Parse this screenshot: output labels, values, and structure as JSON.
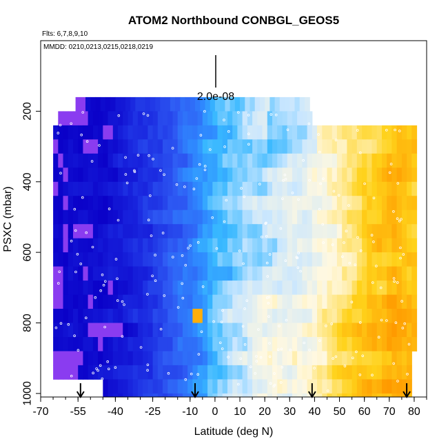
{
  "chart_data": {
    "type": "heatmap",
    "title": "ATOM2 Northbound CONBGL_GEOS5",
    "flights_note": "Flts: 6,7,8,9,10",
    "dates_note": "MMDD: 0210,0213,0215,0218,0219",
    "xlabel": "Latitude (deg N)",
    "ylabel": "PSXC (mbar)",
    "xlim": [
      -70,
      85
    ],
    "ylim": [
      1010,
      0
    ],
    "x_ticks": [
      -70,
      -55,
      -40,
      -25,
      -10,
      0,
      10,
      20,
      30,
      40,
      50,
      60,
      70,
      80
    ],
    "y_ticks": [
      200,
      400,
      600,
      800,
      1000
    ],
    "scale_bar_label": "2.0e-08",
    "arrow_latitudes": [
      -54,
      -8,
      39,
      77
    ],
    "colors": {
      "low": "#0a00c8",
      "mid": "#2f8cff",
      "light": "#c8e6ff",
      "white": "#fff8e0",
      "high": "#ffd21a",
      "peak": "#ff9a00",
      "purple": "#8a3cf0"
    },
    "color_anchors": [
      {
        "lat": -70,
        "level": 0.0
      },
      {
        "lat": -45,
        "level": 0.05
      },
      {
        "lat": -28,
        "level": 0.18
      },
      {
        "lat": -10,
        "level": 0.38
      },
      {
        "lat": 0,
        "level": 0.5
      },
      {
        "lat": 15,
        "level": 0.6
      },
      {
        "lat": 35,
        "level": 0.66
      },
      {
        "lat": 50,
        "level": 0.76
      },
      {
        "lat": 62,
        "level": 0.86
      },
      {
        "lat": 72,
        "level": 0.92
      },
      {
        "lat": 80,
        "level": 0.88
      }
    ]
  }
}
